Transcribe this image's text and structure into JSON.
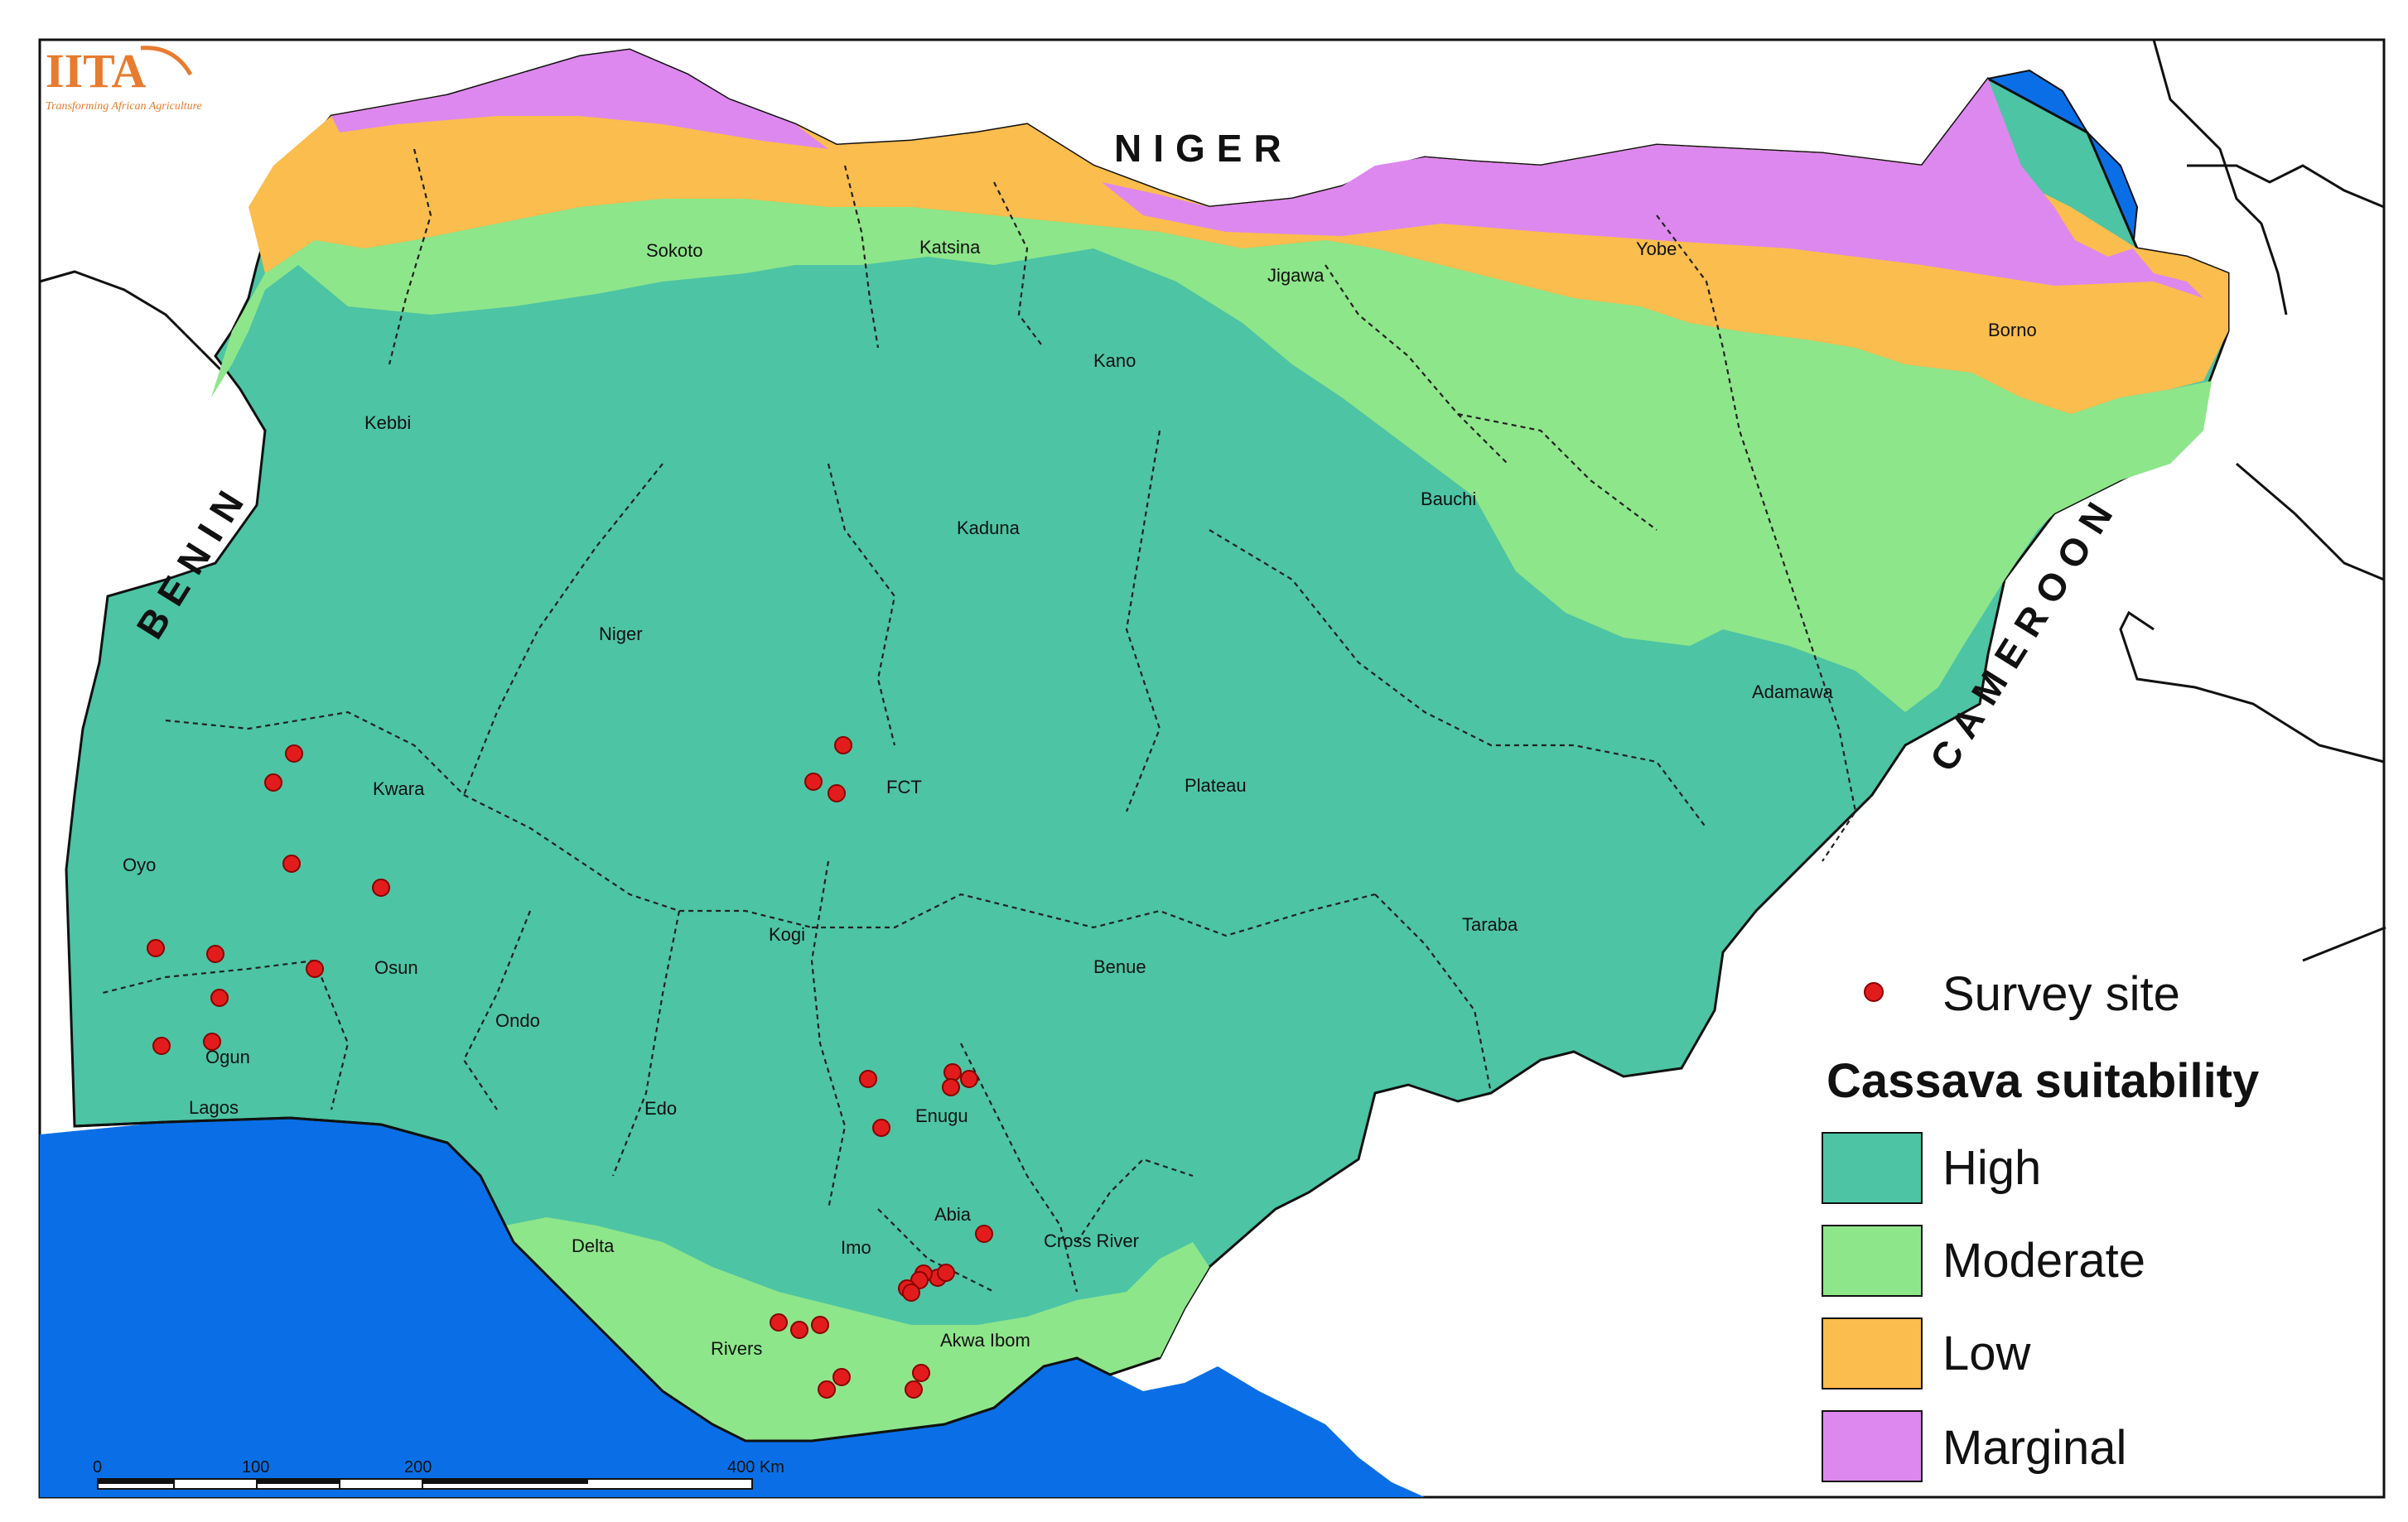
{
  "logo": {
    "name": "IITA",
    "tagline": "Transforming African Agriculture"
  },
  "countries": [
    "NIGER",
    "BENIN",
    "CAMEROON"
  ],
  "states": [
    "Sokoto",
    "Katsina",
    "Jigawa",
    "Yobe",
    "Borno",
    "Kano",
    "Kebbi",
    "Bauchi",
    "Kaduna",
    "Niger",
    "Adamawa",
    "Kwara",
    "FCT",
    "Plateau",
    "Oyo",
    "Kogi",
    "Taraba",
    "Osun",
    "Benue",
    "Ondo",
    "Ogun",
    "Lagos",
    "Edo",
    "Enugu",
    "Abia",
    "Delta",
    "Imo",
    "Cross River",
    "Rivers",
    "Akwa Ibom"
  ],
  "legend": {
    "survey_site": "Survey site",
    "title": "Cassava suitability",
    "classes": [
      {
        "label": "High",
        "color": "#4dc4a4"
      },
      {
        "label": "Moderate",
        "color": "#8ee68a"
      },
      {
        "label": "Low",
        "color": "#fbbd4d"
      },
      {
        "label": "Marginal",
        "color": "#dd88ee"
      }
    ],
    "survey_site_color": "#e21c1c"
  },
  "scale_bar": {
    "ticks": [
      "0",
      "100",
      "200",
      "400 Km"
    ]
  },
  "colors": {
    "water": "#0a6fe6",
    "land": "#ffffff"
  }
}
